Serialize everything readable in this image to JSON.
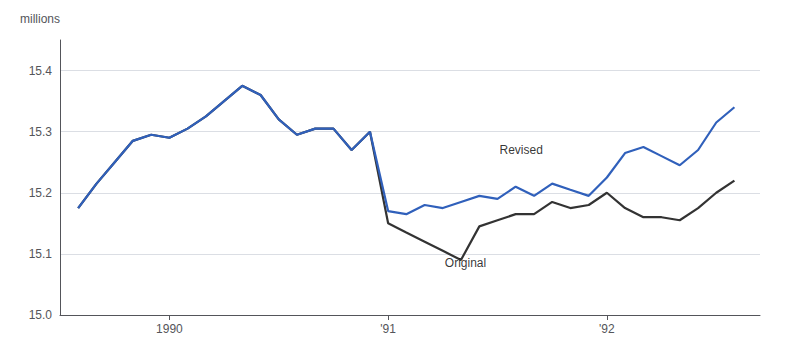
{
  "chart_data": {
    "type": "line",
    "ylabel": "millions",
    "x": [
      1989.583,
      1989.667,
      1989.75,
      1989.833,
      1989.917,
      1990.0,
      1990.083,
      1990.167,
      1990.25,
      1990.333,
      1990.417,
      1990.5,
      1990.583,
      1990.667,
      1990.75,
      1990.833,
      1990.917,
      1991.0,
      1991.083,
      1991.167,
      1991.25,
      1991.333,
      1991.417,
      1991.5,
      1991.583,
      1991.667,
      1991.75,
      1991.833,
      1991.917,
      1992.0,
      1992.083,
      1992.167,
      1992.25,
      1992.333,
      1992.417,
      1992.5,
      1992.583
    ],
    "series": [
      {
        "name": "Revised",
        "color": "#3060bb",
        "values": [
          15.175,
          15.215,
          15.25,
          15.285,
          15.295,
          15.29,
          15.305,
          15.325,
          15.35,
          15.375,
          15.36,
          15.32,
          15.295,
          15.305,
          15.305,
          15.27,
          15.3,
          15.17,
          15.165,
          15.18,
          15.175,
          15.185,
          15.195,
          15.19,
          15.21,
          15.195,
          15.215,
          15.205,
          15.195,
          15.225,
          15.265,
          15.275,
          15.26,
          15.245,
          15.27,
          15.315,
          15.34
        ]
      },
      {
        "name": "Original",
        "color": "#333333",
        "values": [
          15.175,
          15.215,
          15.25,
          15.285,
          15.295,
          15.29,
          15.305,
          15.325,
          15.35,
          15.375,
          15.36,
          15.32,
          15.295,
          15.305,
          15.305,
          15.27,
          15.3,
          15.15,
          15.135,
          15.12,
          15.105,
          15.09,
          15.145,
          15.155,
          15.165,
          15.165,
          15.185,
          15.175,
          15.18,
          15.2,
          15.175,
          15.16,
          15.16,
          15.155,
          15.175,
          15.2,
          15.22
        ]
      }
    ],
    "annotations": [
      {
        "text": "Revised",
        "x": 1991.5,
        "y": 15.27
      },
      {
        "text": "Original",
        "x": 1991.25,
        "y": 15.085
      }
    ],
    "xlim": [
      1989.5,
      1992.7
    ],
    "xticks": [
      1990,
      {
        "value": 1991,
        "label": "'91"
      },
      {
        "value": 1992,
        "label": "'92"
      }
    ],
    "ylim": [
      15.0,
      15.45
    ],
    "yticks": [
      {
        "value": 15.0,
        "label": "15.0"
      },
      15.1,
      15.2,
      15.3,
      15.4
    ],
    "grid": true
  }
}
